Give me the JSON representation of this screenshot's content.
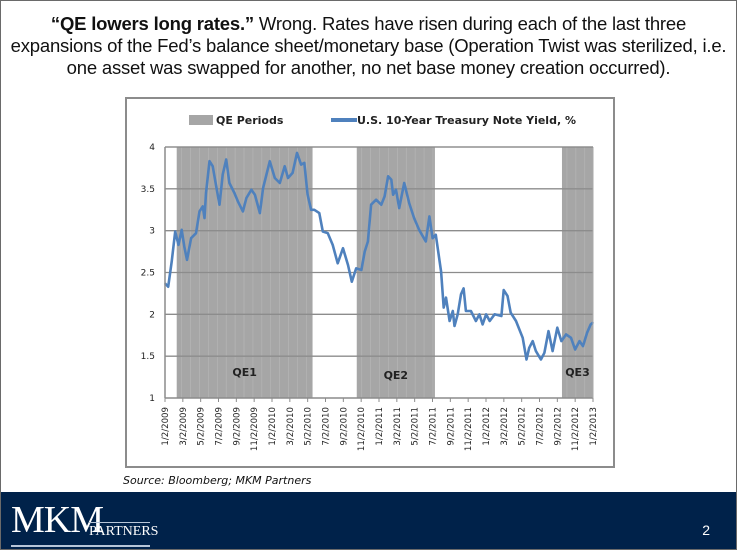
{
  "headline": {
    "bold": "“QE lowers long rates.”",
    "text": " Wrong. Rates have risen during each of the last three expansions of the Fed’s balance sheet/monetary base (Operation Twist was sterilized, i.e. one asset was swapped for another, no net base money creation occurred)."
  },
  "source": "Source: Bloomberg; MKM Partners",
  "footer": {
    "logo_main": "MKM",
    "logo_sub": "PARTNERS",
    "page_number": "2",
    "background": "#00224a"
  },
  "chart_data": {
    "type": "line",
    "legend": {
      "position": "top",
      "entries": [
        "QE Periods",
        "U.S. 10-Year Treasury Note Yield, %"
      ]
    },
    "colors": {
      "line": "#4f81bd",
      "qe_shading": "#a6a6a6",
      "grid": "#8c8c8c"
    },
    "ylim": [
      1,
      4
    ],
    "yticks": [
      1,
      1.5,
      2,
      2.5,
      3,
      3.5,
      4
    ],
    "grid": "horizontal",
    "xlim": [
      "2009-01-02",
      "2013-01-03"
    ],
    "xtick_labels": [
      "1/2/2009",
      "3/2/2009",
      "5/2/2009",
      "7/2/2009",
      "9/2/2009",
      "11/2/2009",
      "1/2/2010",
      "3/2/2010",
      "5/2/2010",
      "7/2/2010",
      "9/2/2010",
      "11/2/2010",
      "1/2/2011",
      "3/2/2011",
      "5/2/2011",
      "7/2/2011",
      "9/2/2011",
      "11/2/2011",
      "1/2/2012",
      "3/2/2012",
      "5/2/2012",
      "7/2/2012",
      "9/2/2012",
      "11/2/2012",
      "1/2/2013"
    ],
    "qe_periods": [
      {
        "label": "QE1",
        "start": "2009-02-11",
        "end": "2010-05-21"
      },
      {
        "label": "QE2",
        "start": "2010-10-19",
        "end": "2011-07-13"
      },
      {
        "label": "QE3",
        "start": "2012-09-19",
        "end": "2013-01-03"
      }
    ],
    "series": [
      {
        "name": "U.S. 10-Year Treasury Note Yield, %",
        "x": [
          "2009-01-02",
          "2009-01-13",
          "2009-01-25",
          "2009-02-06",
          "2009-02-17",
          "2009-02-28",
          "2009-03-09",
          "2009-03-18",
          "2009-04-01",
          "2009-04-18",
          "2009-04-30",
          "2009-05-11",
          "2009-05-17",
          "2009-05-22",
          "2009-06-03",
          "2009-06-14",
          "2009-06-26",
          "2009-07-07",
          "2009-07-18",
          "2009-07-30",
          "2009-08-10",
          "2009-08-27",
          "2009-09-08",
          "2009-09-25",
          "2009-10-07",
          "2009-10-24",
          "2009-11-05",
          "2009-11-22",
          "2009-12-03",
          "2009-12-26",
          "2010-01-12",
          "2010-01-29",
          "2010-02-15",
          "2010-02-26",
          "2010-03-14",
          "2010-03-29",
          "2010-04-12",
          "2010-04-23",
          "2010-05-04",
          "2010-05-16",
          "2010-05-27",
          "2010-06-13",
          "2010-06-25",
          "2010-07-12",
          "2010-07-29",
          "2010-08-15",
          "2010-09-02",
          "2010-09-19",
          "2010-10-02",
          "2010-10-17",
          "2010-11-04",
          "2010-11-15",
          "2010-11-26",
          "2010-12-07",
          "2010-12-24",
          "2011-01-11",
          "2011-01-22",
          "2011-02-03",
          "2011-02-14",
          "2011-02-20",
          "2011-03-02",
          "2011-03-13",
          "2011-03-30",
          "2011-04-16",
          "2011-05-03",
          "2011-05-20",
          "2011-06-12",
          "2011-06-24",
          "2011-07-05",
          "2011-07-16",
          "2011-08-03",
          "2011-08-12",
          "2011-08-20",
          "2011-09-01",
          "2011-09-12",
          "2011-09-18",
          "2011-09-29",
          "2011-10-10",
          "2011-10-19",
          "2011-10-27",
          "2011-11-13",
          "2011-11-30",
          "2011-12-12",
          "2011-12-23",
          "2012-01-04",
          "2012-01-16",
          "2012-02-02",
          "2012-02-25",
          "2012-03-04",
          "2012-03-17",
          "2012-03-28",
          "2012-04-15",
          "2012-05-08",
          "2012-05-21",
          "2012-05-30",
          "2012-06-11",
          "2012-06-22",
          "2012-07-09",
          "2012-07-21",
          "2012-08-04",
          "2012-08-18",
          "2012-09-03",
          "2012-09-17",
          "2012-10-03",
          "2012-10-20",
          "2012-11-03",
          "2012-11-18",
          "2012-11-30",
          "2012-12-14",
          "2012-12-26",
          "2013-01-03"
        ],
        "y": [
          2.37,
          2.33,
          2.63,
          2.99,
          2.83,
          3.01,
          2.81,
          2.65,
          2.91,
          2.97,
          3.23,
          3.29,
          3.15,
          3.45,
          3.83,
          3.77,
          3.53,
          3.31,
          3.67,
          3.85,
          3.57,
          3.45,
          3.35,
          3.23,
          3.39,
          3.49,
          3.43,
          3.21,
          3.51,
          3.83,
          3.63,
          3.57,
          3.77,
          3.63,
          3.69,
          3.93,
          3.79,
          3.81,
          3.43,
          3.25,
          3.25,
          3.21,
          2.99,
          2.97,
          2.83,
          2.61,
          2.79,
          2.59,
          2.39,
          2.55,
          2.53,
          2.75,
          2.87,
          3.31,
          3.37,
          3.31,
          3.41,
          3.65,
          3.61,
          3.43,
          3.49,
          3.27,
          3.57,
          3.33,
          3.15,
          3.01,
          2.87,
          3.17,
          2.91,
          2.95,
          2.51,
          2.08,
          2.2,
          1.92,
          2.04,
          1.86,
          2.0,
          2.24,
          2.31,
          2.04,
          2.04,
          1.92,
          2.0,
          1.88,
          2.0,
          1.92,
          2.0,
          1.98,
          2.29,
          2.22,
          2.02,
          1.92,
          1.72,
          1.46,
          1.6,
          1.68,
          1.56,
          1.46,
          1.54,
          1.8,
          1.56,
          1.84,
          1.68,
          1.76,
          1.72,
          1.58,
          1.68,
          1.62,
          1.78,
          1.88,
          1.9
        ]
      }
    ]
  }
}
